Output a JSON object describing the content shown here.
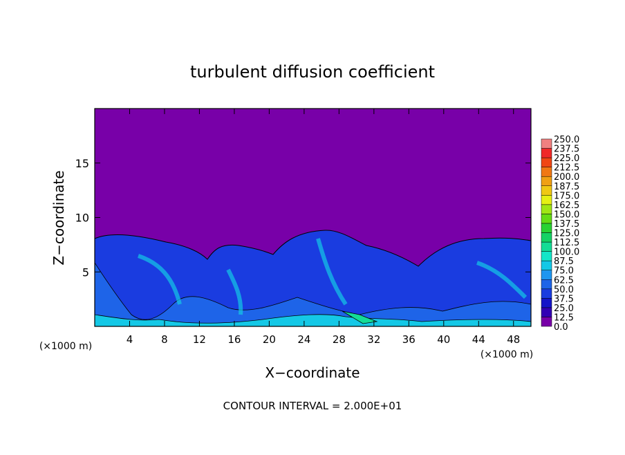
{
  "chart_data": {
    "type": "contour",
    "title": "turbulent diffusion coefficient",
    "x_label": "X−coordinate",
    "y_label": "Z−coordinate",
    "x_unit_label": "(×1000 m)",
    "footnote": "CONTOUR INTERVAL = 2.000E+01",
    "xlim": [
      0,
      50
    ],
    "ylim": [
      0,
      20
    ],
    "xticks": [
      4,
      8,
      12,
      16,
      20,
      24,
      28,
      32,
      36,
      40,
      44,
      48
    ],
    "yticks": [
      5,
      10,
      15
    ],
    "colorbar": {
      "levels": [
        {
          "value": 0,
          "label": "0.0"
        },
        {
          "value": 12.5,
          "label": "12.5"
        },
        {
          "value": 25,
          "label": "25.0"
        },
        {
          "value": 37.5,
          "label": "37.5"
        },
        {
          "value": 50,
          "label": "50.0"
        },
        {
          "value": 62.5,
          "label": "62.5"
        },
        {
          "value": 75,
          "label": "75.0"
        },
        {
          "value": 87.5,
          "label": "87.5"
        },
        {
          "value": 100,
          "label": "100.0"
        },
        {
          "value": 112.5,
          "label": "112.5"
        },
        {
          "value": 125,
          "label": "125.0"
        },
        {
          "value": 137.5,
          "label": "137.5"
        },
        {
          "value": 150,
          "label": "150.0"
        },
        {
          "value": 162.5,
          "label": "162.5"
        },
        {
          "value": 175,
          "label": "175.0"
        },
        {
          "value": 187.5,
          "label": "187.5"
        },
        {
          "value": 200,
          "label": "200.0"
        },
        {
          "value": 212.5,
          "label": "212.5"
        },
        {
          "value": 225,
          "label": "225.0"
        },
        {
          "value": 237.5,
          "label": "237.5"
        },
        {
          "value": 250,
          "label": "250.0"
        }
      ],
      "colors": [
        "#7800a8",
        "#3200b4",
        "#1414c8",
        "#1a3ce0",
        "#1e64e8",
        "#1e96f0",
        "#14c8e6",
        "#14e6c8",
        "#14dc96",
        "#14d264",
        "#28d232",
        "#64dc14",
        "#a0e614",
        "#e6f014",
        "#f0c814",
        "#f0a014",
        "#f07814",
        "#f04614",
        "#f02828",
        "#f08080"
      ]
    }
  }
}
